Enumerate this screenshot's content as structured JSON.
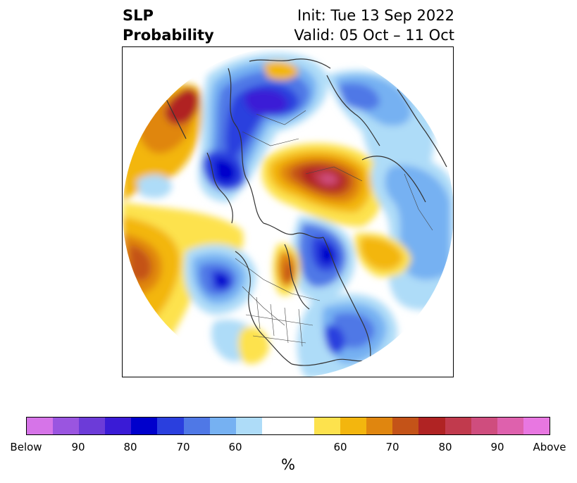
{
  "title": {
    "left_line1": "SLP",
    "left_line2": "Probability",
    "right_line1": "Init: Tue 13 Sep 2022",
    "right_line2": "Valid: 05 Oct – 11 Oct"
  },
  "colorbar": {
    "swatches": [
      "#d674e8",
      "#9a55e0",
      "#6c3bd8",
      "#3a1bd6",
      "#0000cc",
      "#2a3fde",
      "#4f78e6",
      "#76b1f2",
      "#aedcf8",
      "#ffffff",
      "#ffffff",
      "#fde24d",
      "#f3b60e",
      "#e0860f",
      "#c45318",
      "#b02323",
      "#c13a4d",
      "#cf4d7e",
      "#de61ad",
      "#e877e1"
    ],
    "tick_labels": [
      "Below",
      "90",
      "80",
      "70",
      "60",
      "60",
      "70",
      "80",
      "90",
      "Above"
    ],
    "unit": "%"
  }
}
